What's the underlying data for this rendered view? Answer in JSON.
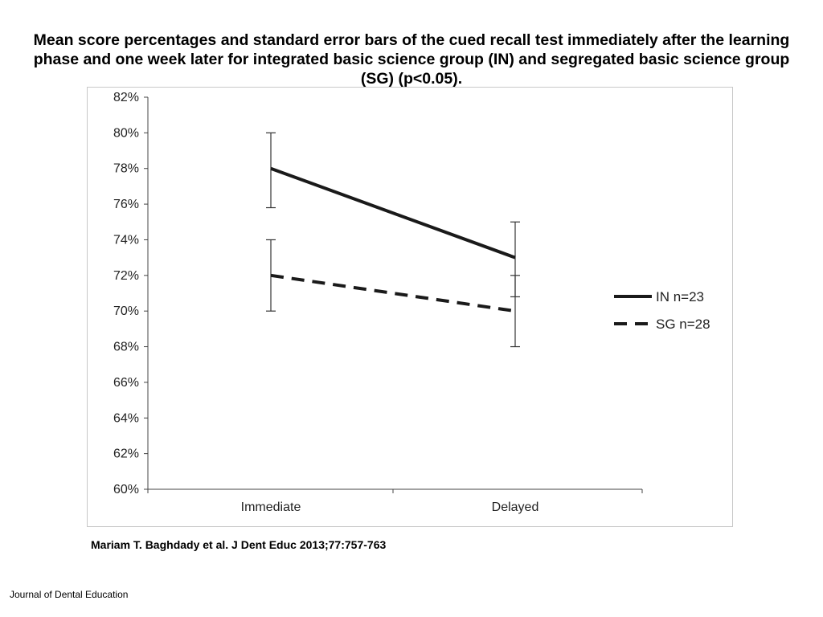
{
  "slide": {
    "title": "Mean score percentages and standard error bars of the cued recall test immediately after the learning phase and one week later for integrated basic science group (IN) and segregated basic science group (SG) (p<0.05).",
    "citation": "Mariam T. Baghdady et al. J Dent Educ 2013;77:757-763",
    "footer": "Journal of Dental Education"
  },
  "chart_data": {
    "type": "line",
    "title": "Mean score percentages and standard error bars of the cued recall test immediately after the learning phase and one week later for integrated basic science group (IN) and segregated basic science group (SG) (p<0.05).",
    "xlabel": "",
    "ylabel": "",
    "categories": [
      "Immediate",
      "Delayed"
    ],
    "ylim": [
      60,
      82
    ],
    "yticks": [
      60,
      62,
      64,
      66,
      68,
      70,
      72,
      74,
      76,
      78,
      80,
      82
    ],
    "ytick_labels": [
      "60%",
      "62%",
      "64%",
      "66%",
      "68%",
      "70%",
      "72%",
      "74%",
      "76%",
      "78%",
      "80%",
      "82%"
    ],
    "grid": false,
    "legend_position": "right",
    "series": [
      {
        "name": "IN n=23",
        "style": "solid",
        "color": "#1a1a1a",
        "values": [
          78,
          73
        ],
        "error_low": [
          75.8,
          70.8
        ],
        "error_high": [
          80,
          75
        ]
      },
      {
        "name": "SG n=28",
        "style": "dashed",
        "color": "#1a1a1a",
        "values": [
          72,
          70
        ],
        "error_low": [
          70,
          68
        ],
        "error_high": [
          74,
          72
        ]
      }
    ]
  }
}
